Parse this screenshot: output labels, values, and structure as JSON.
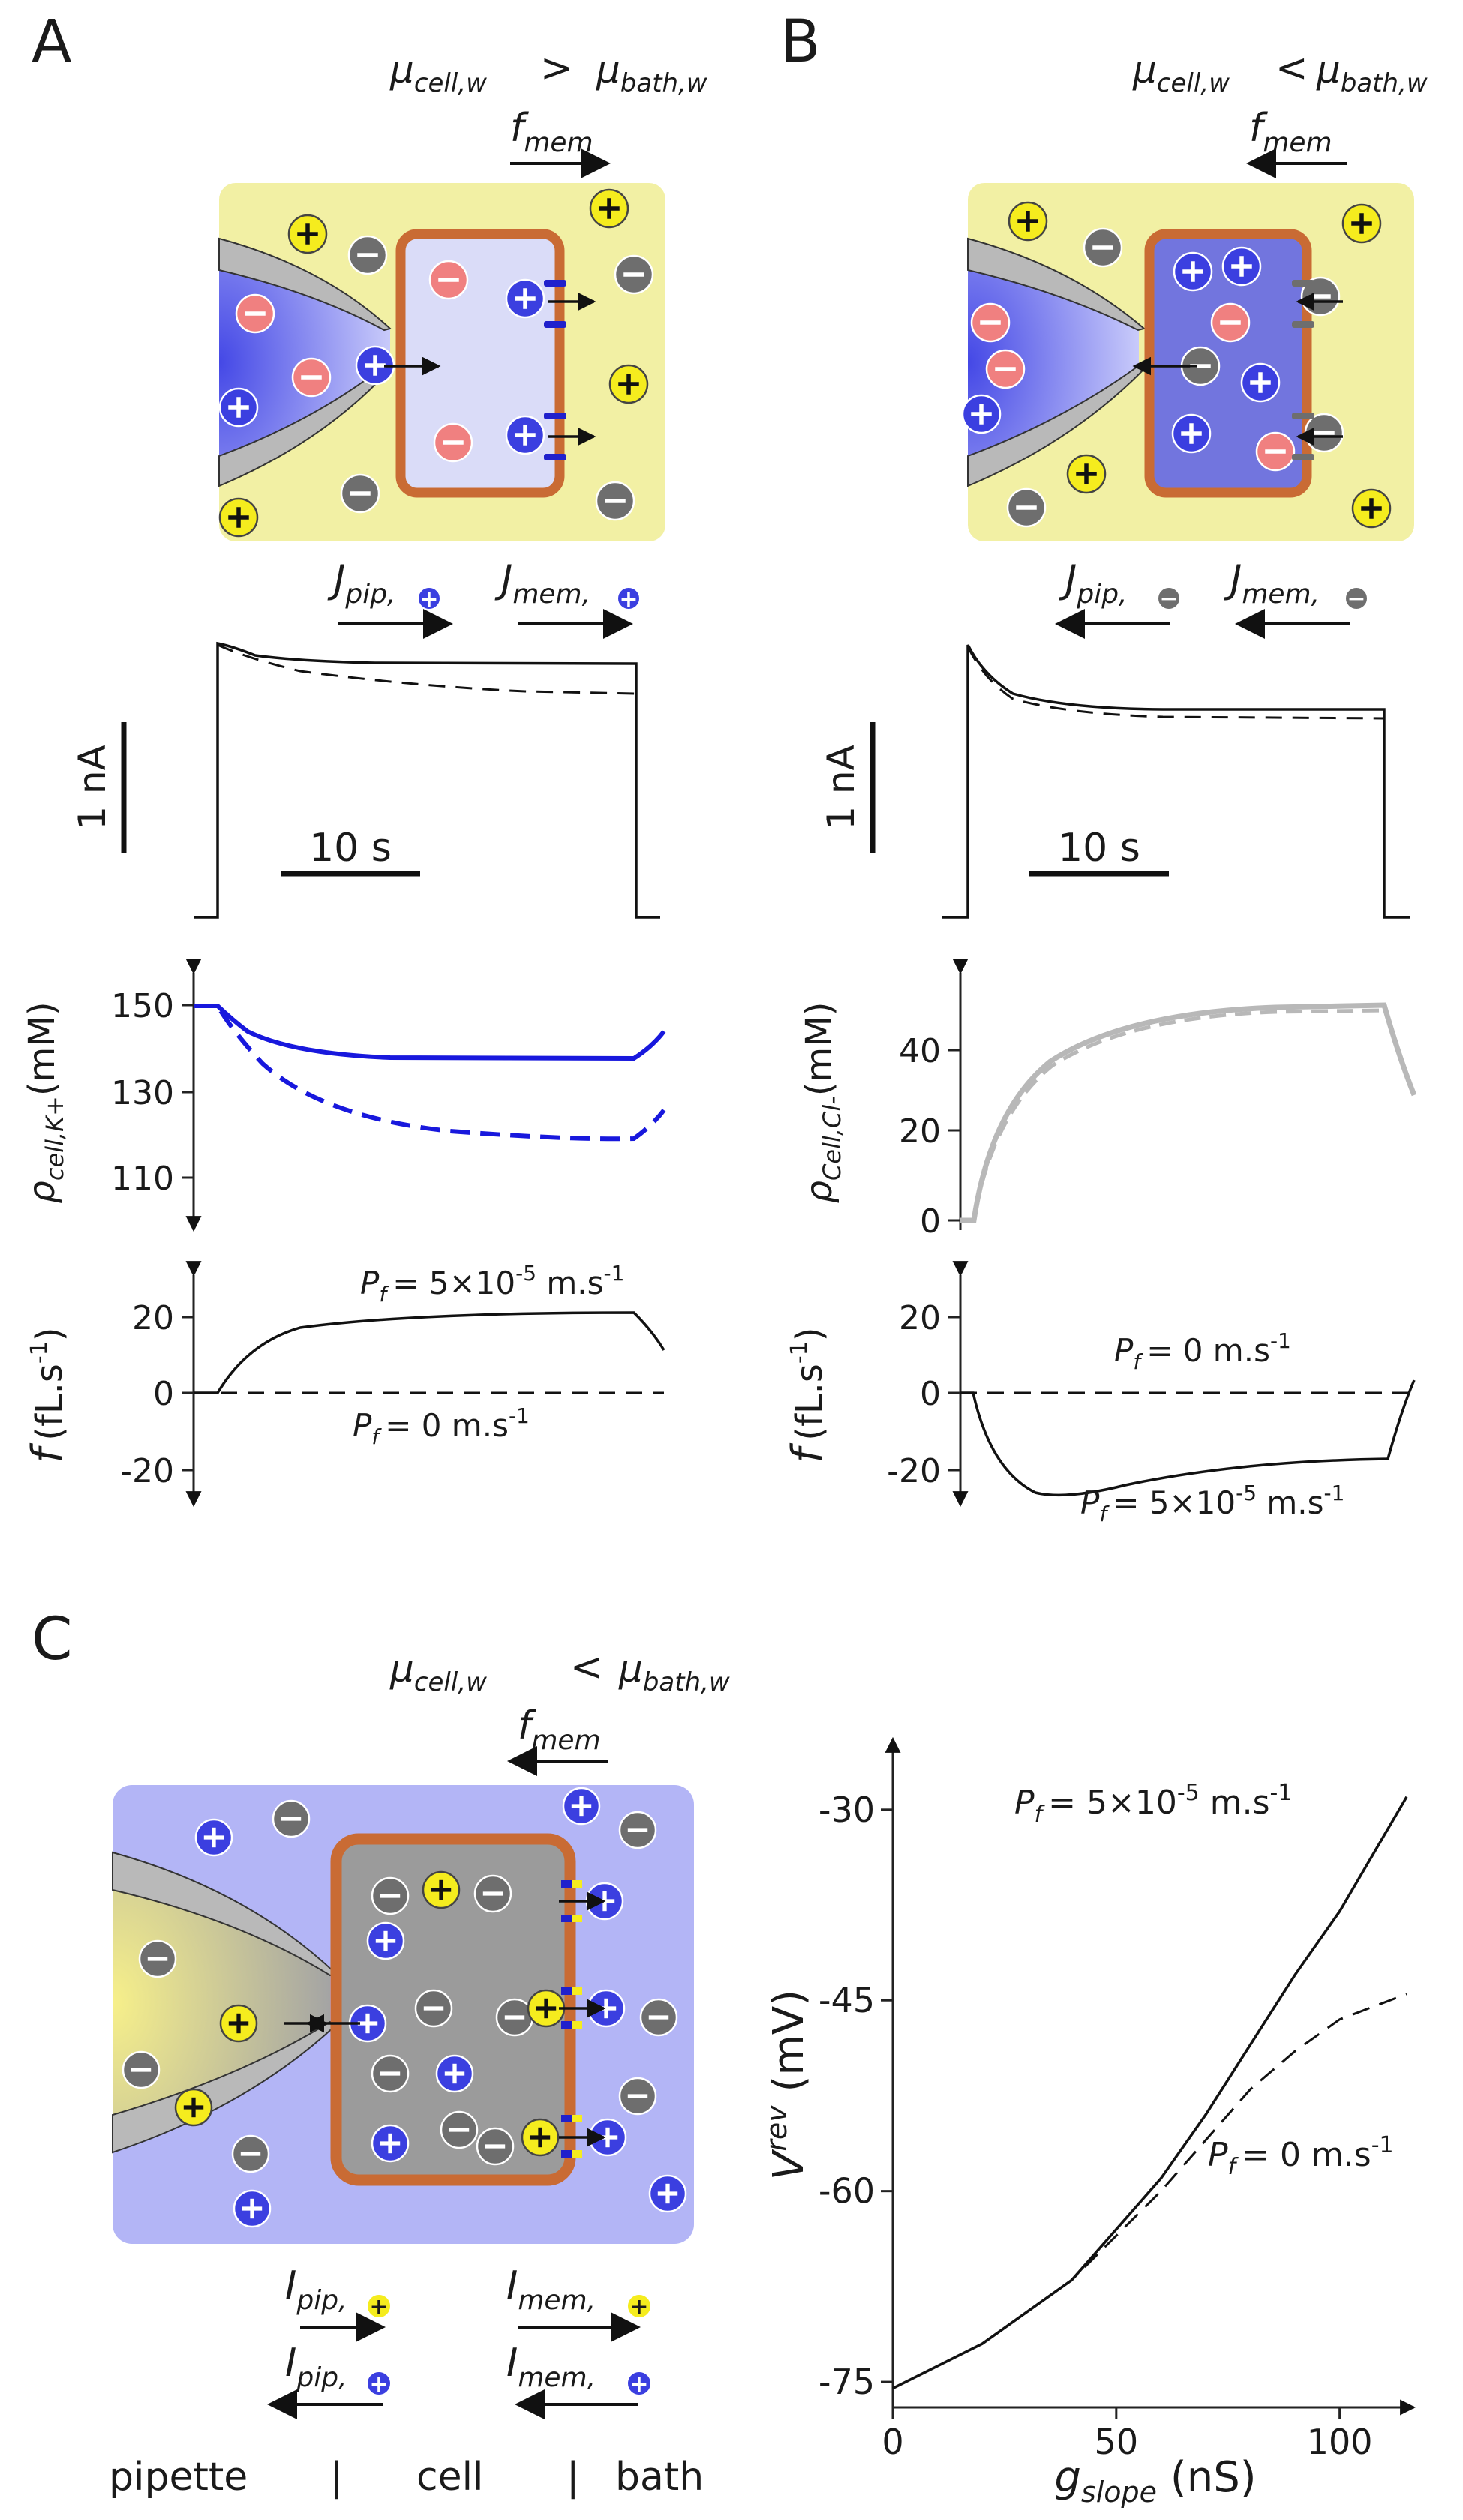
{
  "panels": {
    "a": "A",
    "b": "B",
    "c": "C"
  },
  "colors": {
    "bath_yellow": "#f2f0a4",
    "bath_blue": "#b3b5f6",
    "cell_light": "#dadcf8",
    "cell_dark": "#7275de",
    "cell_gray": "#9b9b9b",
    "membrane": "#c96b34",
    "cation_blue": "#3b3fe0",
    "anion_red": "#f08080",
    "cation_yellow": "#f5ec1e",
    "anion_gray": "#6e6e6e",
    "k_line": "#1818dd",
    "cl_line": "#b8b8b8"
  },
  "ions": {
    "plus": "+",
    "minus": "−"
  },
  "A": {
    "mu_left": "μ",
    "mu_left_sub": "cell,w",
    "relation": ">",
    "mu_right": "μ",
    "mu_right_sub": "bath,w",
    "f_main": "f",
    "f_sub": "mem",
    "j_pip": "J",
    "j_pip_sub": "pip,",
    "j_mem": "J",
    "j_mem_sub": "mem,",
    "scale_y": "1 nA",
    "scale_x": "10 s",
    "rho_label": "ρ",
    "rho_sub": "cell,K+",
    "rho_unit": "(mM)",
    "rho_ticks": [
      "150",
      "130",
      "110"
    ],
    "f_label": "f",
    "f_unit": "(fL.s",
    "f_unit_sup": "-1",
    "f_unit_close": ")",
    "f_ticks": [
      "20",
      "0",
      "-20"
    ],
    "pf_high": "= 5×10",
    "pf_high_sup": "-5",
    "pf_high_unit": " m.s",
    "pf_low": "= 0 m.s",
    "pf_sup": "-1",
    "pf_symbol": "P",
    "pf_sub": "f"
  },
  "B": {
    "mu_left": "μ",
    "mu_left_sub": "cell,w",
    "relation": "<",
    "mu_right": "μ",
    "mu_right_sub": "bath,w",
    "f_main": "f",
    "f_sub": "mem",
    "j_pip": "J",
    "j_pip_sub": "pip,",
    "j_mem": "J",
    "j_mem_sub": "mem,",
    "scale_y": "1 nA",
    "scale_x": "10 s",
    "rho_label": "ρ",
    "rho_sub": "Cell,Cl-",
    "rho_unit": "(mM)",
    "rho_ticks": [
      "40",
      "20",
      "0"
    ],
    "f_label": "f",
    "f_unit": "(fL.s",
    "f_unit_sup": "-1",
    "f_unit_close": ")",
    "f_ticks": [
      "20",
      "0",
      "-20"
    ],
    "pf_high": "= 5×10",
    "pf_high_sup": "-5",
    "pf_high_unit": " m.s",
    "pf_low": "= 0 m.s",
    "pf_sup": "-1",
    "pf_symbol": "P",
    "pf_sub": "f"
  },
  "C": {
    "mu_left": "μ",
    "mu_left_sub": "cell,w",
    "relation": "<",
    "mu_right": "μ",
    "mu_right_sub": "bath,w",
    "f_main": "f",
    "f_sub": "mem",
    "i_pip": "I",
    "i_pip_sub": "pip,",
    "i_mem": "I",
    "i_mem_sub": "mem,",
    "bottom_labels": [
      "pipette",
      "|",
      "cell",
      "|",
      "bath"
    ]
  },
  "chart_data": [
    {
      "type": "line",
      "panel": "A-current",
      "title": "",
      "xlabel": "",
      "ylabel": "",
      "scale_bars": {
        "x": "10 s",
        "y": "1 nA"
      },
      "series": [
        {
          "style": "solid",
          "t": [
            0,
            4,
            5,
            10,
            20,
            30,
            34,
            34.2,
            40
          ],
          "I": [
            0,
            0,
            1.0,
            0.9,
            0.87,
            0.86,
            0.86,
            0,
            0
          ]
        },
        {
          "style": "dashed",
          "t": [
            4,
            5,
            10,
            20,
            30,
            34
          ],
          "I": [
            0,
            1.0,
            0.82,
            0.74,
            0.7,
            0.68
          ]
        }
      ]
    },
    {
      "type": "line",
      "panel": "A-concentration",
      "ylabel": "ρcell,K+ (mM)",
      "yticks": [
        150,
        130,
        110
      ],
      "ylim": [
        102,
        158
      ],
      "series": [
        {
          "style": "solid",
          "color": "#1818dd",
          "x": [
            0,
            2,
            5,
            10,
            20,
            30,
            34,
            36
          ],
          "y": [
            150,
            150,
            143,
            139.5,
            138,
            138,
            138,
            144
          ]
        },
        {
          "style": "dashed",
          "color": "#1818dd",
          "x": [
            0,
            2,
            5,
            10,
            20,
            30,
            34,
            36
          ],
          "y": [
            150,
            150,
            142,
            131,
            121,
            119,
            119,
            126
          ]
        }
      ]
    },
    {
      "type": "line",
      "panel": "A-flux",
      "ylabel": "f (fL.s-1)",
      "yticks": [
        20,
        0,
        -20
      ],
      "ylim": [
        -25,
        27
      ],
      "series": [
        {
          "label": "Pf = 5×10-5 m.s-1",
          "style": "solid",
          "x": [
            0,
            2,
            4,
            7,
            12,
            20,
            28,
            34,
            36
          ],
          "y": [
            0,
            0,
            12,
            18,
            20.5,
            21.5,
            22,
            22,
            10
          ]
        },
        {
          "label": "Pf = 0 m.s-1",
          "style": "dashed",
          "x": [
            0,
            36
          ],
          "y": [
            0,
            0
          ]
        }
      ]
    },
    {
      "type": "line",
      "panel": "B-current",
      "scale_bars": {
        "x": "10 s",
        "y": "1 nA"
      },
      "series": [
        {
          "style": "solid",
          "t": [
            0,
            4,
            5,
            7,
            10,
            20,
            30,
            34,
            34.2,
            40
          ],
          "I": [
            0,
            0,
            1.0,
            0.8,
            0.7,
            0.68,
            0.68,
            0.68,
            0,
            0
          ]
        },
        {
          "style": "dashed",
          "t": [
            4,
            5,
            7,
            10,
            20,
            30,
            34
          ],
          "I": [
            0,
            1.0,
            0.78,
            0.68,
            0.66,
            0.65,
            0.65
          ]
        }
      ]
    },
    {
      "type": "line",
      "panel": "B-concentration",
      "ylabel": "ρCell,Cl- (mM)",
      "yticks": [
        40,
        20,
        0
      ],
      "ylim": [
        -4,
        60
      ],
      "series": [
        {
          "style": "solid",
          "color": "#b8b8b8",
          "x": [
            0,
            2,
            4,
            8,
            14,
            22,
            30,
            34,
            36
          ],
          "y": [
            0,
            0,
            22,
            38,
            46,
            50,
            51.5,
            52,
            32
          ]
        },
        {
          "style": "dashed",
          "color": "#b8b8b8",
          "x": [
            0,
            2,
            4,
            8,
            14,
            22,
            30,
            34,
            36
          ],
          "y": [
            0,
            0,
            21,
            37,
            45,
            49,
            50.5,
            51,
            32
          ]
        }
      ]
    },
    {
      "type": "line",
      "panel": "B-flux",
      "ylabel": "f (fL.s-1)",
      "yticks": [
        20,
        0,
        -20
      ],
      "ylim": [
        -25,
        27
      ],
      "series": [
        {
          "label": "Pf = 5×10-5 m.s-1",
          "style": "solid",
          "x": [
            0,
            3,
            5,
            8,
            12,
            20,
            28,
            34,
            36
          ],
          "y": [
            0,
            0,
            -12,
            -18,
            -17,
            -15.5,
            -14.5,
            -14,
            4
          ]
        },
        {
          "label": "Pf = 0 m.s-1",
          "style": "dashed",
          "x": [
            0,
            36
          ],
          "y": [
            0,
            0
          ]
        }
      ]
    },
    {
      "type": "line",
      "panel": "C",
      "xlabel": "gslope (nS)",
      "ylabel": "Vrev (mV)",
      "xticks": [
        0,
        50,
        100
      ],
      "yticks": [
        -30,
        -45,
        -60,
        -75
      ],
      "xlim": [
        0,
        115
      ],
      "ylim": [
        -77,
        -25
      ],
      "series": [
        {
          "label": "Pf = 5×10-5 m.s-1",
          "style": "solid",
          "x": [
            0,
            20,
            40,
            60,
            70,
            80,
            90,
            100,
            115
          ],
          "y": [
            -75.5,
            -72,
            -67,
            -59,
            -54,
            -48.5,
            -43,
            -38,
            -29
          ]
        },
        {
          "label": "Pf = 0 m.s-1",
          "style": "dashed",
          "x": [
            0,
            20,
            40,
            60,
            70,
            80,
            90,
            100,
            115
          ],
          "y": [
            -75.5,
            -72,
            -67,
            -60,
            -56,
            -52,
            -49,
            -46.5,
            -44.5
          ]
        }
      ]
    }
  ]
}
